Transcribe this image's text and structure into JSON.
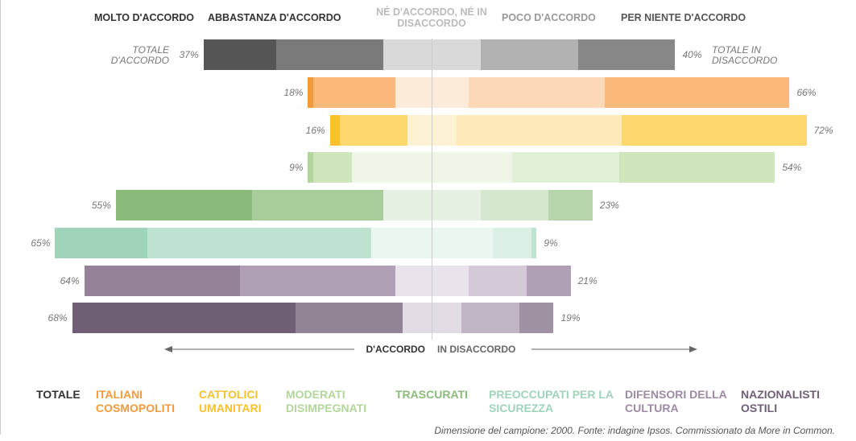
{
  "chart_data": {
    "type": "diverging_bar",
    "categories": [
      "MOLTO D'ACCORDO",
      "ABBASTANZA D'ACCORDO",
      "NÉ D'ACCORDO, NÉ IN DISACCORDO",
      "POCO D'ACCORDO",
      "PER NIENTE D'ACCORDO"
    ],
    "category_colors": [
      "#333333",
      "#333333",
      "#bbbbbb",
      "#999999",
      "#555555"
    ],
    "side_labels": [
      "TOTALE D'ACCORDO",
      "TOTALE IN DISACCORDO"
    ],
    "axis_labels": [
      "D'ACCORDO",
      "IN DISACCORDO"
    ],
    "footnote": "Dimensione del campione: 2000. Fonte: indagine Ipsos. Commissionato da More in Common.",
    "series": [
      {
        "name": "TOTALE",
        "color": "#333333",
        "colors": [
          "#555555",
          "#7a7a7a",
          "#d9d9d9",
          "#b2b2b2",
          "#888888"
        ],
        "values": [
          15,
          22,
          20,
          20,
          20
        ],
        "totals": [
          37,
          40
        ],
        "totals_labels": [
          "37%",
          "40%"
        ]
      },
      {
        "name": "ITALIANI COSMOPOLITI",
        "color": "#f39b3c",
        "colors": [
          "#f39b3c",
          "#f8b97b",
          "#fdebd9",
          "#fcd8b7",
          "#f8b97b"
        ],
        "values": [
          1,
          17,
          15,
          28,
          38
        ],
        "totals": [
          18,
          66
        ],
        "totals_labels": [
          "18%",
          "66%"
        ]
      },
      {
        "name": "CATTOLICI UMANITARI",
        "color": "#f9c12e",
        "colors": [
          "#fcc12a",
          "#fdd86e",
          "#fef2d5",
          "#feeab8",
          "#fdd86e"
        ],
        "values": [
          2,
          14,
          10,
          34,
          38
        ],
        "totals": [
          16,
          72
        ],
        "totals_labels": [
          "16%",
          "72%"
        ]
      },
      {
        "name": "MODERATI DISIMPEGNATI",
        "color": "#b3d69a",
        "colors": [
          "#b3d69a",
          "#cfe6bd",
          "#eef6e8",
          "#e2f0d7",
          "#cfe6bd"
        ],
        "values": [
          1,
          8,
          33,
          22,
          32
        ],
        "totals": [
          9,
          54
        ],
        "totals_labels": [
          "9%",
          "54%"
        ]
      },
      {
        "name": "TRASCURATI",
        "color": "#8bbb7b",
        "colors": [
          "#8bbb7b",
          "#a8cd9a",
          "#e7f1e3",
          "#d6e7d0",
          "#b6d5aa"
        ],
        "values": [
          28,
          27,
          20,
          14,
          9
        ],
        "totals": [
          55,
          23
        ],
        "totals_labels": [
          "55%",
          "23%"
        ]
      },
      {
        "name": "PREOCCUPATI PER LA SICUREZZA",
        "color": "#9fd4bb",
        "colors": [
          "#9fd4bb",
          "#bfe3d1",
          "#ecf6f1",
          "#dbefe5",
          "#bfe3d1"
        ],
        "values": [
          19,
          46,
          25,
          8,
          1
        ],
        "totals": [
          65,
          9
        ],
        "totals_labels": [
          "65%",
          "9%"
        ]
      },
      {
        "name": "DIFENSORI DELLA CULTURA",
        "color": "#9d8aa3",
        "colors": [
          "#948299",
          "#b0a0b6",
          "#e9e3eb",
          "#d5cbd8",
          "#b0a0b6"
        ],
        "values": [
          32,
          32,
          15,
          12,
          9
        ],
        "totals": [
          64,
          21
        ],
        "totals_labels": [
          "64%",
          "21%"
        ]
      },
      {
        "name": "NAZIONALISTI OSTILI",
        "color": "#6f5f75",
        "colors": [
          "#6f5f75",
          "#918495",
          "#e1dce3",
          "#c0b6c3",
          "#9f92a3"
        ],
        "values": [
          46,
          22,
          12,
          12,
          7
        ],
        "totals": [
          68,
          19
        ],
        "totals_labels": [
          "68%",
          "19%"
        ]
      }
    ]
  }
}
